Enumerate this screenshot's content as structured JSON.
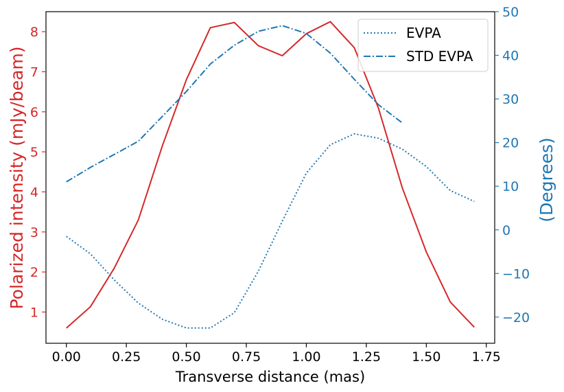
{
  "chart_data": {
    "type": "line",
    "xlabel": "Transverse distance (mas)",
    "ylabel_left": "Polarized intensity (mJy/beam)",
    "ylabel_right": "(Degrees)",
    "xlim": [
      -0.085,
      1.785
    ],
    "ylim_left": [
      0.22,
      8.5
    ],
    "ylim_right": [
      -26.0,
      50.0
    ],
    "x_ticks": [
      0.0,
      0.25,
      0.5,
      0.75,
      1.0,
      1.25,
      1.5,
      1.75
    ],
    "x_tick_labels": [
      "0.00",
      "0.25",
      "0.50",
      "0.75",
      "1.00",
      "1.25",
      "1.50",
      "1.75"
    ],
    "left_ticks": [
      1,
      2,
      3,
      4,
      5,
      6,
      7,
      8
    ],
    "left_tick_labels": [
      "1",
      "2",
      "3",
      "4",
      "5",
      "6",
      "7",
      "8"
    ],
    "right_ticks": [
      -20,
      -10,
      0,
      10,
      20,
      30,
      40,
      50
    ],
    "right_tick_labels": [
      "−20",
      "−10",
      "0",
      "10",
      "20",
      "30",
      "40",
      "50"
    ],
    "grid": false,
    "legend_position": "top-right",
    "colors": {
      "left_axis": "#d62728",
      "right_axis": "#1f77b4",
      "frame": "#000000"
    },
    "series": [
      {
        "name": "",
        "axis": "left",
        "style": "solid",
        "color": "#d62728",
        "x": [
          0.0,
          0.1,
          0.2,
          0.3,
          0.4,
          0.5,
          0.6,
          0.7,
          0.8,
          0.9,
          1.0,
          1.1,
          1.2,
          1.3,
          1.4,
          1.5,
          1.6,
          1.7
        ],
        "values": [
          0.6,
          1.13,
          2.1,
          3.3,
          5.15,
          6.8,
          8.1,
          8.23,
          7.65,
          7.4,
          7.95,
          8.25,
          7.6,
          6.1,
          4.1,
          2.5,
          1.25,
          0.62
        ]
      },
      {
        "name": "EVPA",
        "axis": "right",
        "style": "dotted",
        "color": "#1f77b4",
        "x": [
          0.0,
          0.1,
          0.2,
          0.3,
          0.4,
          0.5,
          0.6,
          0.7,
          0.8,
          0.9,
          1.0,
          1.1,
          1.2,
          1.3,
          1.4,
          1.5,
          1.6,
          1.7
        ],
        "values": [
          -1.5,
          -5.5,
          -11.5,
          -16.8,
          -20.5,
          -22.5,
          -22.5,
          -19.0,
          -9.5,
          2.0,
          13.0,
          19.5,
          22.0,
          21.0,
          18.5,
          14.5,
          9.0,
          6.5
        ]
      },
      {
        "name": "STD EVPA",
        "axis": "right",
        "style": "dashdot",
        "color": "#1f77b4",
        "x": [
          0.0,
          0.1,
          0.2,
          0.3,
          0.4,
          0.5,
          0.6,
          0.7,
          0.8,
          0.9,
          1.0,
          1.1,
          1.2,
          1.3,
          1.4
        ],
        "values": [
          11.0,
          14.3,
          17.3,
          20.3,
          26.0,
          31.7,
          38.0,
          42.3,
          45.5,
          46.8,
          45.0,
          40.5,
          34.5,
          28.7,
          24.5
        ]
      }
    ]
  }
}
